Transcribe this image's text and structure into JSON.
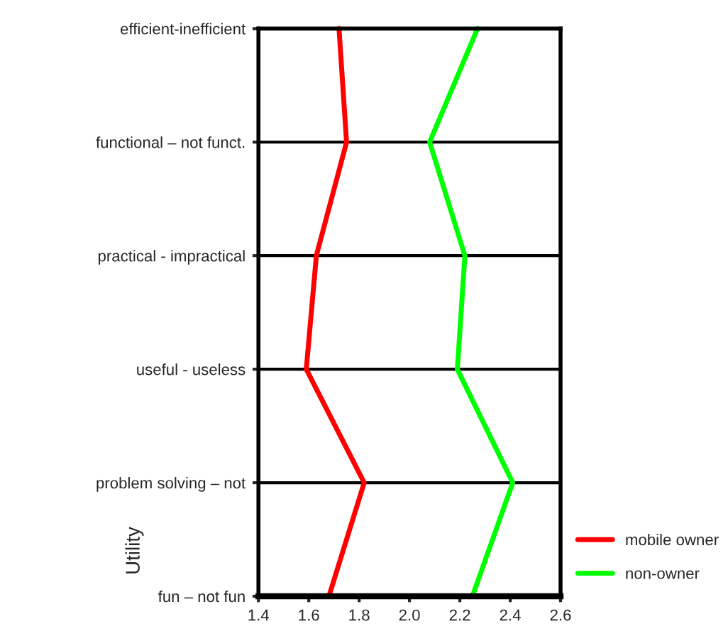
{
  "chart_data": {
    "type": "line",
    "orientation": "horizontal",
    "ylabel": "Utility",
    "categories": [
      "efficient-inefficient",
      "functional – not funct.",
      "practical - impractical",
      "useful - useless",
      "problem solving – not",
      "fun – not fun"
    ],
    "series": [
      {
        "name": "mobile owner",
        "color": "#ff0000",
        "values": [
          1.72,
          1.75,
          1.63,
          1.59,
          1.82,
          1.68
        ]
      },
      {
        "name": "non-owner",
        "color": "#00ff00",
        "values": [
          2.27,
          2.08,
          2.22,
          2.19,
          2.41,
          2.25
        ]
      }
    ],
    "xlim": [
      1.4,
      2.6
    ],
    "xticks": [
      1.4,
      1.6,
      1.8,
      {
        "value": 2,
        "label": "2.0"
      },
      2.2,
      2.4,
      2.6
    ],
    "grid": "y",
    "legend": "bottom right",
    "marker": "none",
    "line_style": "solid"
  }
}
